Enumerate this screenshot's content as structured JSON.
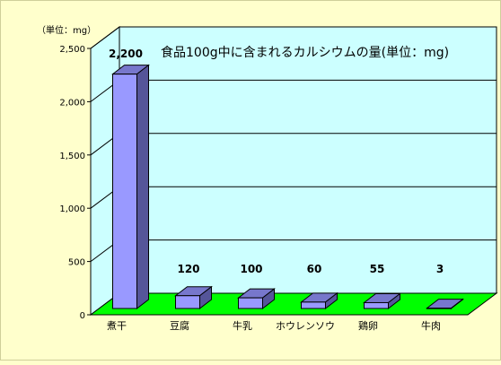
{
  "chart_data": {
    "type": "bar",
    "title": "食品100g中に含まれるカルシウムの量(単位：mg)",
    "ylabel": "（単位：mg）",
    "xlabel": "",
    "categories": [
      "煮干",
      "豆腐",
      "牛乳",
      "ホウレンソウ",
      "鶏卵",
      "牛肉"
    ],
    "values": [
      2200,
      120,
      100,
      60,
      55,
      3
    ],
    "value_labels": [
      "2,200",
      "120",
      "100",
      "60",
      "55",
      "3"
    ],
    "ylim": [
      0,
      2500
    ],
    "yticks": [
      0,
      500,
      1000,
      1500,
      2000,
      2500
    ],
    "ytick_labels": [
      "0",
      "500",
      "1,000",
      "1,500",
      "2,000",
      "2,500"
    ],
    "grid": true,
    "legend": "none",
    "colors": {
      "background": "#ffffcc",
      "plot_back": "#ccffff",
      "floor": "#00ff00",
      "bar_front": "#9999ff",
      "bar_top": "#7777cc",
      "bar_side": "#555599"
    }
  }
}
